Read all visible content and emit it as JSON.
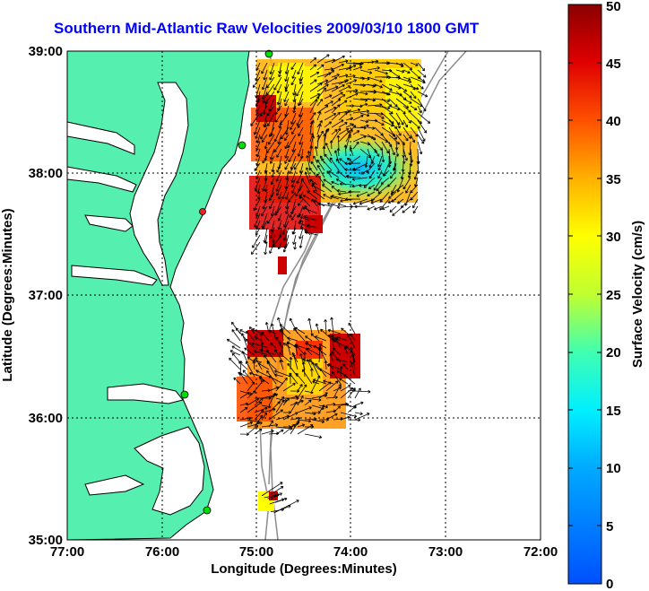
{
  "title": "Southern Mid-Atlantic Raw Velocities 2009/03/10 1800 GMT",
  "map": {
    "xlabel": "Longitude (Degrees:Minutes)",
    "ylabel": "Latitude (Degrees:Minutes)",
    "x_ticks": [
      "77:00",
      "76:00",
      "75:00",
      "74:00",
      "73:00",
      "72:00"
    ],
    "y_ticks": [
      "39:00",
      "38:00",
      "37:00",
      "36:00",
      "35:00"
    ],
    "xlim": [
      -77,
      -72
    ],
    "ylim": [
      35,
      39
    ],
    "land_color": "#55f0b0",
    "contour_color": "#8c8c8c"
  },
  "colorbar": {
    "label": "Surface Velocity (cm/s)",
    "ticks": [
      "50",
      "45",
      "40",
      "35",
      "30",
      "25",
      "20",
      "15",
      "10",
      "5",
      "0"
    ],
    "range": [
      0,
      50
    ]
  }
}
